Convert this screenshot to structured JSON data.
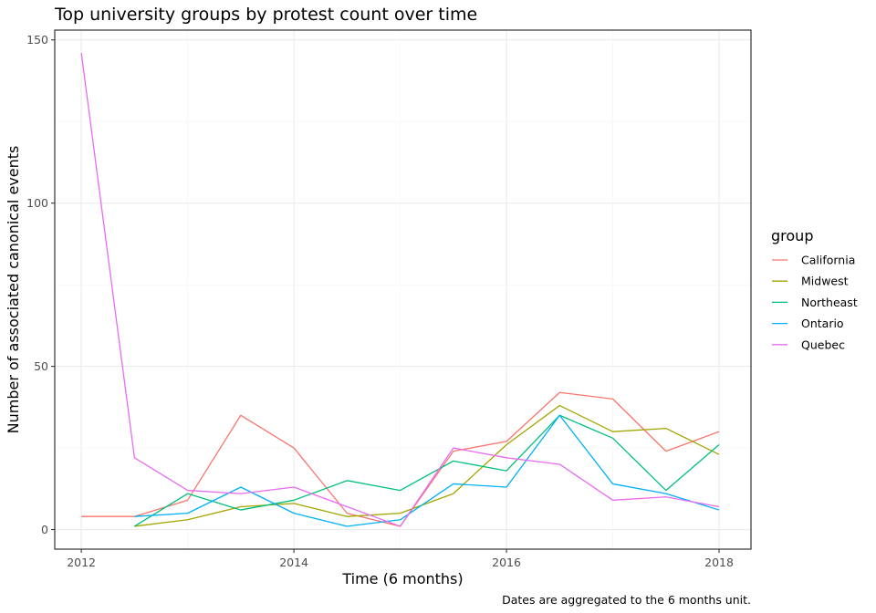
{
  "chart_data": {
    "type": "line",
    "title": "Top university groups by protest count over time",
    "xlabel": "Time (6 months)",
    "ylabel": "Number of associated canonical events",
    "caption": "Dates are aggregated to the 6 months unit.",
    "xlim": [
      2011.75,
      2018.3
    ],
    "ylim": [
      -6,
      153
    ],
    "x_ticks": [
      2012,
      2014,
      2016,
      2018
    ],
    "x_tick_labels": [
      "2012",
      "2014",
      "2016",
      "2018"
    ],
    "y_ticks": [
      0,
      50,
      100,
      150
    ],
    "y_tick_labels": [
      "0",
      "50",
      "100",
      "150"
    ],
    "grid": true,
    "legend": {
      "title": "group",
      "position": "right"
    },
    "series": [
      {
        "name": "California",
        "color": "#F8766D",
        "x": [
          2012.0,
          2012.5,
          2013.0,
          2013.5,
          2014.0,
          2014.5,
          2015.0,
          2015.5,
          2016.0,
          2016.5,
          2017.0,
          2017.5,
          2018.0
        ],
        "values": [
          4,
          4,
          9,
          35,
          25,
          5,
          1,
          24,
          27,
          42,
          40,
          24,
          30
        ]
      },
      {
        "name": "Midwest",
        "color": "#A3A500",
        "x": [
          2012.5,
          2013.0,
          2013.5,
          2014.0,
          2014.5,
          2015.0,
          2015.5,
          2016.0,
          2016.5,
          2017.0,
          2017.5,
          2018.0
        ],
        "values": [
          1,
          3,
          7,
          8,
          4,
          5,
          11,
          26,
          38,
          30,
          31,
          23
        ]
      },
      {
        "name": "Northeast",
        "color": "#00BF7D",
        "x": [
          2012.5,
          2013.0,
          2013.5,
          2014.0,
          2014.5,
          2015.0,
          2015.5,
          2016.0,
          2016.5,
          2017.0,
          2017.5,
          2018.0
        ],
        "values": [
          1,
          11,
          6,
          9,
          15,
          12,
          21,
          18,
          35,
          28,
          12,
          26
        ]
      },
      {
        "name": "Ontario",
        "color": "#00B0F6",
        "x": [
          2012.5,
          2013.0,
          2013.5,
          2014.0,
          2014.5,
          2015.0,
          2015.5,
          2016.0,
          2016.5,
          2017.0,
          2017.5,
          2018.0
        ],
        "values": [
          4,
          5,
          13,
          5,
          1,
          3,
          14,
          13,
          35,
          14,
          11,
          6
        ]
      },
      {
        "name": "Quebec",
        "color": "#E76BF3",
        "x": [
          2012.0,
          2012.5,
          2013.0,
          2013.5,
          2014.0,
          2014.5,
          2015.0,
          2015.5,
          2016.0,
          2016.5,
          2017.0,
          2017.5,
          2018.0
        ],
        "values": [
          146,
          22,
          12,
          11,
          13,
          7,
          1,
          25,
          22,
          20,
          9,
          10,
          7
        ]
      }
    ]
  }
}
